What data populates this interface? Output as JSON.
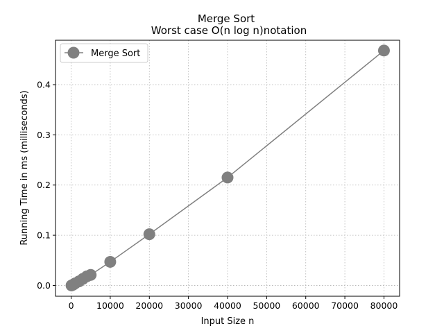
{
  "chart_data": {
    "type": "line",
    "title": "Merge Sort",
    "subtitle": "Worst case O(n log n)notation",
    "xlabel": "Input Size n",
    "ylabel": "Running Time in ms (milliseconds)",
    "xlim": [
      -4000,
      84000
    ],
    "ylim": [
      -0.0215,
      0.4885
    ],
    "xticks": [
      0,
      10000,
      20000,
      30000,
      40000,
      50000,
      60000,
      70000,
      80000
    ],
    "xtick_labels": [
      "0",
      "10000",
      "20000",
      "30000",
      "40000",
      "50000",
      "60000",
      "70000",
      "80000"
    ],
    "yticks": [
      0.0,
      0.1,
      0.2,
      0.3,
      0.4
    ],
    "ytick_labels": [
      "0.0",
      "0.1",
      "0.2",
      "0.3",
      "0.4"
    ],
    "grid": true,
    "legend_position": "top-left",
    "series": [
      {
        "name": "Merge Sort",
        "color": "#808080",
        "marker": "circle",
        "x": [
          100,
          500,
          1000,
          2000,
          3000,
          4000,
          5000,
          10000,
          20000,
          40000,
          80000
        ],
        "y": [
          0.0,
          0.0015,
          0.004,
          0.008,
          0.013,
          0.018,
          0.021,
          0.047,
          0.102,
          0.215,
          0.468
        ]
      }
    ]
  }
}
